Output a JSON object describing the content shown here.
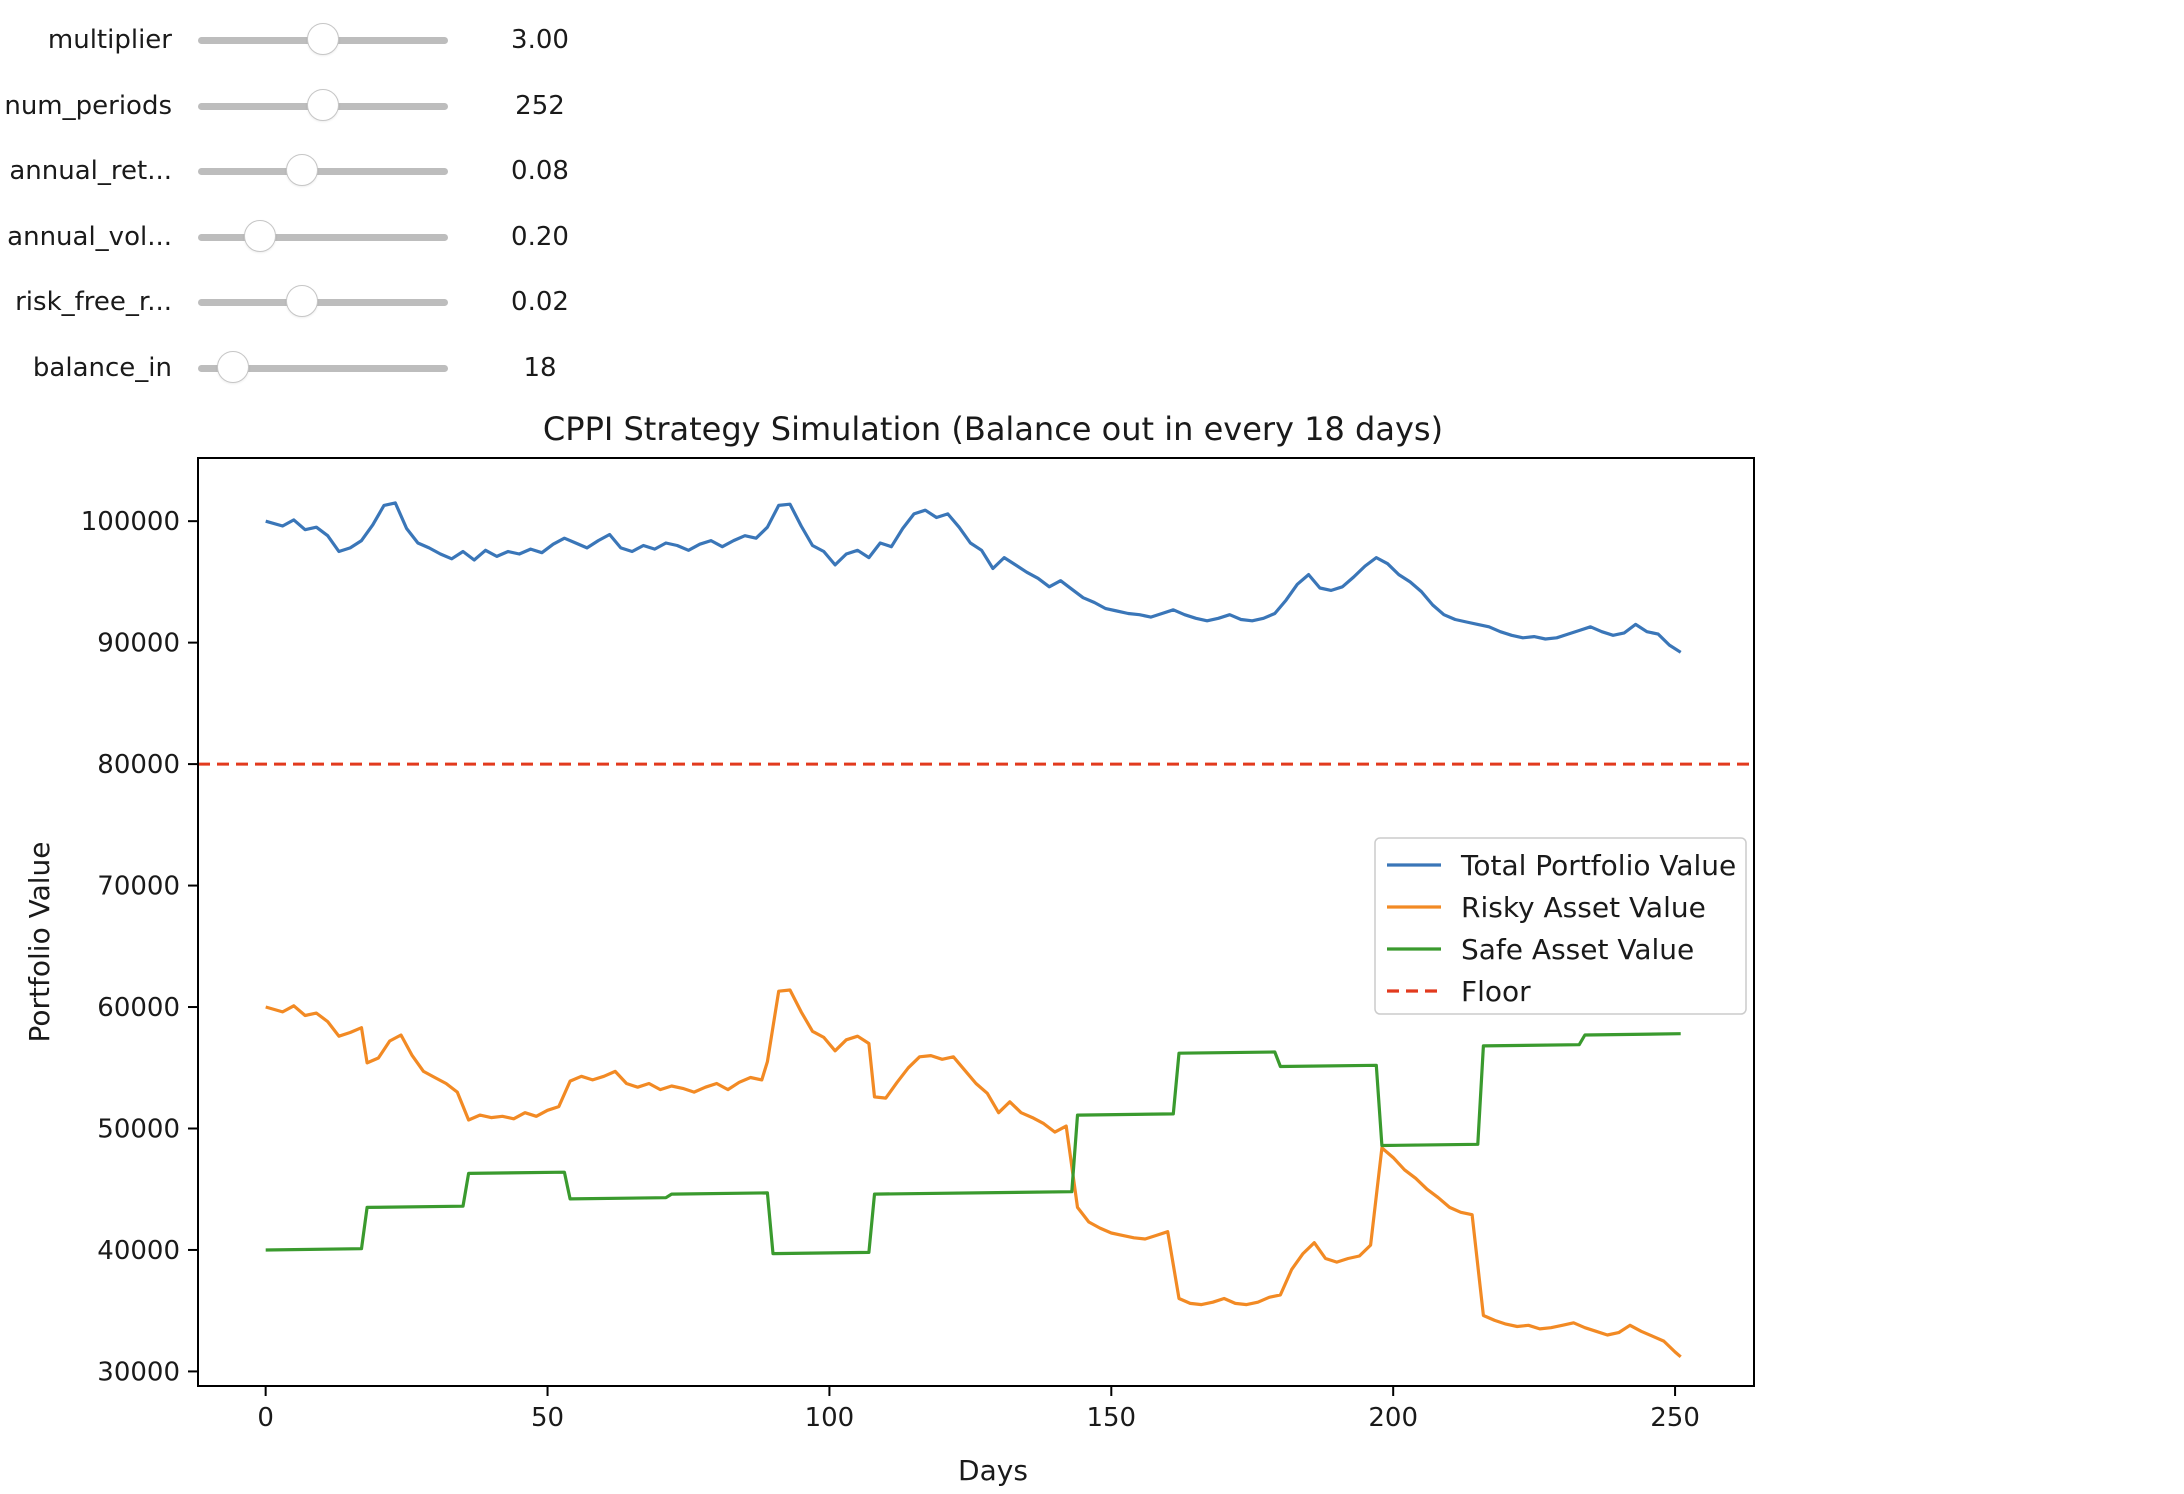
{
  "widgets": [
    {
      "label": "multiplier",
      "value": "3.00",
      "fraction": 0.5
    },
    {
      "label": "num_periods",
      "value": "252",
      "fraction": 0.5
    },
    {
      "label": "annual_ret...",
      "value": "0.08",
      "fraction": 0.4
    },
    {
      "label": "annual_vol...",
      "value": "0.20",
      "fraction": 0.2
    },
    {
      "label": "risk_free_r...",
      "value": "0.02",
      "fraction": 0.4
    },
    {
      "label": "balance_in",
      "value": "18",
      "fraction": 0.07
    }
  ],
  "colors": {
    "total": "#3a76b8",
    "risky": "#f28a24",
    "safe": "#3a9a2e",
    "floor": "#e23a1e"
  },
  "chart_data": {
    "type": "line",
    "title": "CPPI Strategy Simulation (Balance out in every 18 days)",
    "xlabel": "Days",
    "ylabel": "Portfolio Value",
    "xlim": [
      -12,
      264
    ],
    "ylim": [
      28800,
      105200
    ],
    "xticks": [
      0,
      50,
      100,
      150,
      200,
      250
    ],
    "yticks": [
      30000,
      40000,
      50000,
      60000,
      70000,
      80000,
      90000,
      100000
    ],
    "legend_position": "center-right",
    "floor": 80000,
    "series": [
      {
        "name": "Total Portfolio Value",
        "color_key": "total",
        "points": [
          [
            0,
            100000
          ],
          [
            3,
            99600
          ],
          [
            5,
            100100
          ],
          [
            7,
            99300
          ],
          [
            9,
            99500
          ],
          [
            11,
            98800
          ],
          [
            13,
            97500
          ],
          [
            15,
            97800
          ],
          [
            17,
            98400
          ],
          [
            19,
            99700
          ],
          [
            21,
            101300
          ],
          [
            23,
            101500
          ],
          [
            25,
            99400
          ],
          [
            27,
            98200
          ],
          [
            29,
            97800
          ],
          [
            31,
            97300
          ],
          [
            33,
            96900
          ],
          [
            35,
            97500
          ],
          [
            37,
            96800
          ],
          [
            39,
            97600
          ],
          [
            41,
            97100
          ],
          [
            43,
            97500
          ],
          [
            45,
            97300
          ],
          [
            47,
            97700
          ],
          [
            49,
            97400
          ],
          [
            51,
            98100
          ],
          [
            53,
            98600
          ],
          [
            55,
            98200
          ],
          [
            57,
            97800
          ],
          [
            59,
            98400
          ],
          [
            61,
            98900
          ],
          [
            63,
            97800
          ],
          [
            65,
            97500
          ],
          [
            67,
            98000
          ],
          [
            69,
            97700
          ],
          [
            71,
            98200
          ],
          [
            73,
            98000
          ],
          [
            75,
            97600
          ],
          [
            77,
            98100
          ],
          [
            79,
            98400
          ],
          [
            81,
            97900
          ],
          [
            83,
            98400
          ],
          [
            85,
            98800
          ],
          [
            87,
            98600
          ],
          [
            89,
            99500
          ],
          [
            91,
            101300
          ],
          [
            93,
            101400
          ],
          [
            95,
            99600
          ],
          [
            97,
            98000
          ],
          [
            99,
            97500
          ],
          [
            101,
            96400
          ],
          [
            103,
            97300
          ],
          [
            105,
            97600
          ],
          [
            107,
            97000
          ],
          [
            109,
            98200
          ],
          [
            111,
            97900
          ],
          [
            113,
            99400
          ],
          [
            115,
            100600
          ],
          [
            117,
            100900
          ],
          [
            119,
            100300
          ],
          [
            121,
            100600
          ],
          [
            123,
            99500
          ],
          [
            125,
            98200
          ],
          [
            127,
            97600
          ],
          [
            129,
            96100
          ],
          [
            131,
            97000
          ],
          [
            133,
            96400
          ],
          [
            135,
            95800
          ],
          [
            137,
            95300
          ],
          [
            139,
            94600
          ],
          [
            141,
            95100
          ],
          [
            143,
            94400
          ],
          [
            145,
            93700
          ],
          [
            147,
            93300
          ],
          [
            149,
            92800
          ],
          [
            151,
            92600
          ],
          [
            153,
            92400
          ],
          [
            155,
            92300
          ],
          [
            157,
            92100
          ],
          [
            159,
            92400
          ],
          [
            161,
            92700
          ],
          [
            163,
            92300
          ],
          [
            165,
            92000
          ],
          [
            167,
            91800
          ],
          [
            169,
            92000
          ],
          [
            171,
            92300
          ],
          [
            173,
            91900
          ],
          [
            175,
            91800
          ],
          [
            177,
            92000
          ],
          [
            179,
            92400
          ],
          [
            181,
            93500
          ],
          [
            183,
            94800
          ],
          [
            185,
            95600
          ],
          [
            187,
            94500
          ],
          [
            189,
            94300
          ],
          [
            191,
            94600
          ],
          [
            193,
            95400
          ],
          [
            195,
            96300
          ],
          [
            197,
            97000
          ],
          [
            199,
            96500
          ],
          [
            201,
            95600
          ],
          [
            203,
            95000
          ],
          [
            205,
            94200
          ],
          [
            207,
            93100
          ],
          [
            209,
            92300
          ],
          [
            211,
            91900
          ],
          [
            213,
            91700
          ],
          [
            215,
            91500
          ],
          [
            217,
            91300
          ],
          [
            219,
            90900
          ],
          [
            221,
            90600
          ],
          [
            223,
            90400
          ],
          [
            225,
            90500
          ],
          [
            227,
            90300
          ],
          [
            229,
            90400
          ],
          [
            231,
            90700
          ],
          [
            233,
            91000
          ],
          [
            235,
            91300
          ],
          [
            237,
            90900
          ],
          [
            239,
            90600
          ],
          [
            241,
            90800
          ],
          [
            243,
            91500
          ],
          [
            245,
            90900
          ],
          [
            247,
            90700
          ],
          [
            249,
            89800
          ],
          [
            251,
            89200
          ]
        ]
      },
      {
        "name": "Risky Asset Value",
        "color_key": "risky",
        "points": [
          [
            0,
            60000
          ],
          [
            3,
            59600
          ],
          [
            5,
            60100
          ],
          [
            7,
            59300
          ],
          [
            9,
            59500
          ],
          [
            11,
            58800
          ],
          [
            13,
            57600
          ],
          [
            15,
            57900
          ],
          [
            17,
            58300
          ],
          [
            18,
            55400
          ],
          [
            20,
            55800
          ],
          [
            22,
            57200
          ],
          [
            24,
            57700
          ],
          [
            26,
            56000
          ],
          [
            28,
            54700
          ],
          [
            30,
            54200
          ],
          [
            32,
            53700
          ],
          [
            34,
            53000
          ],
          [
            36,
            50700
          ],
          [
            38,
            51100
          ],
          [
            40,
            50900
          ],
          [
            42,
            51000
          ],
          [
            44,
            50800
          ],
          [
            46,
            51300
          ],
          [
            48,
            51000
          ],
          [
            50,
            51500
          ],
          [
            52,
            51800
          ],
          [
            54,
            53900
          ],
          [
            56,
            54300
          ],
          [
            58,
            54000
          ],
          [
            60,
            54300
          ],
          [
            62,
            54700
          ],
          [
            64,
            53700
          ],
          [
            66,
            53400
          ],
          [
            68,
            53700
          ],
          [
            70,
            53200
          ],
          [
            72,
            53500
          ],
          [
            74,
            53300
          ],
          [
            76,
            53000
          ],
          [
            78,
            53400
          ],
          [
            80,
            53700
          ],
          [
            82,
            53200
          ],
          [
            84,
            53800
          ],
          [
            86,
            54200
          ],
          [
            88,
            54000
          ],
          [
            89,
            55500
          ],
          [
            91,
            61300
          ],
          [
            93,
            61400
          ],
          [
            95,
            59600
          ],
          [
            97,
            58000
          ],
          [
            99,
            57500
          ],
          [
            101,
            56400
          ],
          [
            103,
            57300
          ],
          [
            105,
            57600
          ],
          [
            107,
            57000
          ],
          [
            108,
            52600
          ],
          [
            110,
            52500
          ],
          [
            112,
            53800
          ],
          [
            114,
            55000
          ],
          [
            116,
            55900
          ],
          [
            118,
            56000
          ],
          [
            120,
            55700
          ],
          [
            122,
            55900
          ],
          [
            124,
            54800
          ],
          [
            126,
            53700
          ],
          [
            128,
            52900
          ],
          [
            130,
            51300
          ],
          [
            132,
            52200
          ],
          [
            134,
            51300
          ],
          [
            136,
            50900
          ],
          [
            138,
            50400
          ],
          [
            140,
            49700
          ],
          [
            142,
            50200
          ],
          [
            144,
            43500
          ],
          [
            146,
            42300
          ],
          [
            148,
            41800
          ],
          [
            150,
            41400
          ],
          [
            152,
            41200
          ],
          [
            154,
            41000
          ],
          [
            156,
            40900
          ],
          [
            158,
            41200
          ],
          [
            160,
            41500
          ],
          [
            162,
            36000
          ],
          [
            164,
            35600
          ],
          [
            166,
            35500
          ],
          [
            168,
            35700
          ],
          [
            170,
            36000
          ],
          [
            172,
            35600
          ],
          [
            174,
            35500
          ],
          [
            176,
            35700
          ],
          [
            178,
            36100
          ],
          [
            180,
            36300
          ],
          [
            182,
            38400
          ],
          [
            184,
            39700
          ],
          [
            186,
            40600
          ],
          [
            188,
            39300
          ],
          [
            190,
            39000
          ],
          [
            192,
            39300
          ],
          [
            194,
            39500
          ],
          [
            196,
            40400
          ],
          [
            198,
            48400
          ],
          [
            200,
            47600
          ],
          [
            202,
            46600
          ],
          [
            204,
            45900
          ],
          [
            206,
            45000
          ],
          [
            208,
            44300
          ],
          [
            210,
            43500
          ],
          [
            212,
            43100
          ],
          [
            214,
            42900
          ],
          [
            216,
            34600
          ],
          [
            218,
            34200
          ],
          [
            220,
            33900
          ],
          [
            222,
            33700
          ],
          [
            224,
            33800
          ],
          [
            226,
            33500
          ],
          [
            228,
            33600
          ],
          [
            230,
            33800
          ],
          [
            232,
            34000
          ],
          [
            234,
            33600
          ],
          [
            236,
            33300
          ],
          [
            238,
            33000
          ],
          [
            240,
            33200
          ],
          [
            242,
            33800
          ],
          [
            244,
            33300
          ],
          [
            246,
            32900
          ],
          [
            248,
            32500
          ],
          [
            250,
            31600
          ],
          [
            251,
            31200
          ]
        ]
      },
      {
        "name": "Safe Asset Value",
        "color_key": "safe",
        "points": [
          [
            0,
            40000
          ],
          [
            17,
            40100
          ],
          [
            18,
            43500
          ],
          [
            35,
            43600
          ],
          [
            36,
            46300
          ],
          [
            53,
            46400
          ],
          [
            54,
            44200
          ],
          [
            71,
            44300
          ],
          [
            72,
            44600
          ],
          [
            89,
            44700
          ],
          [
            90,
            39700
          ],
          [
            107,
            39800
          ],
          [
            108,
            44600
          ],
          [
            143,
            44800
          ],
          [
            144,
            51100
          ],
          [
            161,
            51200
          ],
          [
            162,
            56200
          ],
          [
            179,
            56300
          ],
          [
            180,
            55100
          ],
          [
            197,
            55200
          ],
          [
            198,
            48600
          ],
          [
            215,
            48700
          ],
          [
            216,
            56800
          ],
          [
            233,
            56900
          ],
          [
            234,
            57700
          ],
          [
            251,
            57800
          ]
        ]
      },
      {
        "name": "Floor",
        "color_key": "floor",
        "dashed": true,
        "points": [
          [
            -12,
            80000
          ],
          [
            264,
            80000
          ]
        ]
      }
    ]
  }
}
